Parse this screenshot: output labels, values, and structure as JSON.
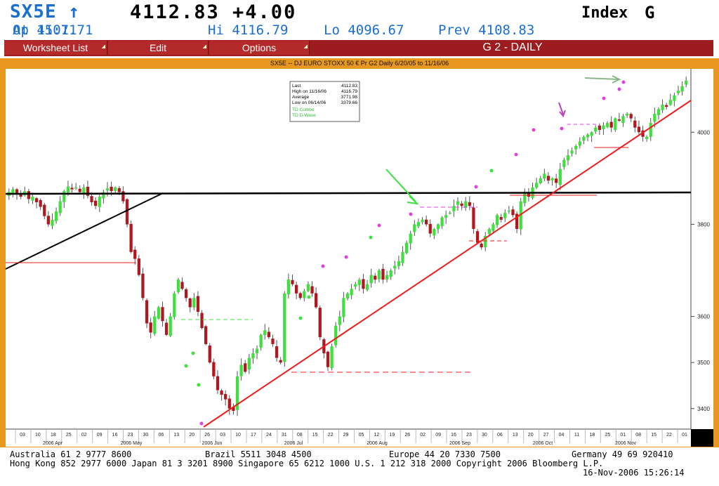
{
  "header": {
    "ticker": "SX5E",
    "arrow": "↑",
    "last_change": "4112.83 +4.00",
    "type": "Index",
    "type_code": "G",
    "at": "At 15:11",
    "open": "Op 4107.71",
    "high": "Hi 4116.79",
    "low": "Lo 4096.67",
    "prev": "Prev 4108.83"
  },
  "menu": {
    "worksheet_list": "Worksheet List",
    "edit": "Edit",
    "options": "Options",
    "page_title": "G 2 - DAILY"
  },
  "chart_data": {
    "type": "candlestick",
    "title": "SX5E -- DJ EURO STOXX 50 € Pr G2 Daily 6/20/05 to 11/16/06",
    "ylim": [
      3360,
      4130
    ],
    "yticks": [
      3400,
      3500,
      3600,
      3800,
      4000
    ],
    "ytick_labels": [
      "3400",
      "3500",
      "3600",
      "3800",
      "4000"
    ],
    "xtick_labels": [
      "03",
      "10",
      "18",
      "25",
      "02",
      "09",
      "16",
      "23",
      "30",
      "06",
      "13",
      "20",
      "26",
      "03",
      "10",
      "17",
      "24",
      "31",
      "08",
      "15",
      "22",
      "29",
      "05",
      "12",
      "19",
      "26",
      "02",
      "09",
      "16",
      "23",
      "30",
      "06",
      "13",
      "20",
      "27",
      "04",
      "11",
      "18",
      "25",
      "01",
      "08",
      "15",
      "22",
      "01"
    ],
    "month_labels": [
      "2006 Apr",
      "2006 May",
      "2006 Jun",
      "2006 Jul",
      "2006 Aug",
      "2006 Sep",
      "2006 Oct",
      "2006 Nov"
    ],
    "legend_box": {
      "rows": [
        [
          "Last",
          "4112.83"
        ],
        [
          "High on 11/16/06",
          "4116.79"
        ],
        [
          "Average",
          "3771.98"
        ],
        [
          "Low on 06/14/06",
          "3379.66"
        ]
      ],
      "studies": [
        "TD Combo",
        "TD D-Wave"
      ]
    },
    "horizontal_lines": [
      {
        "level": 3884,
        "color": "#000000"
      }
    ],
    "trendlines": [
      {
        "from": [
          "Jun 13",
          3395
        ],
        "to": [
          "Nov 16",
          4090
        ],
        "color": "#ee1c1c"
      },
      {
        "from": [
          "Mar 27",
          3735
        ],
        "to": [
          "May 16",
          3885
        ],
        "color": "#000000"
      }
    ],
    "closes": [
      3870,
      3876,
      3866,
      3860,
      3872,
      3855,
      3860,
      3848,
      3838,
      3818,
      3800,
      3810,
      3828,
      3850,
      3872,
      3882,
      3876,
      3880,
      3870,
      3880,
      3862,
      3848,
      3840,
      3860,
      3870,
      3878,
      3872,
      3880,
      3870,
      3850,
      3800,
      3740,
      3725,
      3690,
      3640,
      3585,
      3565,
      3600,
      3620,
      3590,
      3560,
      3600,
      3650,
      3680,
      3660,
      3640,
      3620,
      3640,
      3610,
      3575,
      3540,
      3500,
      3470,
      3440,
      3430,
      3420,
      3400,
      3395,
      3470,
      3495,
      3480,
      3510,
      3520,
      3530,
      3560,
      3570,
      3555,
      3540,
      3510,
      3500,
      3650,
      3680,
      3670,
      3650,
      3640,
      3655,
      3670,
      3650,
      3620,
      3555,
      3520,
      3490,
      3535,
      3580,
      3600,
      3640,
      3650,
      3660,
      3670,
      3680,
      3660,
      3670,
      3690,
      3680,
      3700,
      3680,
      3690,
      3700,
      3710,
      3720,
      3740,
      3760,
      3780,
      3800,
      3805,
      3810,
      3800,
      3780,
      3790,
      3800,
      3815,
      3820,
      3825,
      3840,
      3850,
      3840,
      3850,
      3840,
      3790,
      3760,
      3750,
      3775,
      3790,
      3800,
      3820,
      3810,
      3825,
      3830,
      3820,
      3790,
      3850,
      3870,
      3860,
      3880,
      3890,
      3900,
      3910,
      3895,
      3900,
      3890,
      3920,
      3940,
      3950,
      3960,
      3970,
      3980,
      3990,
      3995,
      4000,
      4010,
      4005,
      4015,
      4020,
      4010,
      4030,
      4025,
      4035,
      4040,
      4030,
      4010,
      4000,
      3990,
      3990,
      4020,
      4040,
      4050,
      4060,
      4055,
      4070,
      4080,
      4090,
      4100,
      4112
    ],
    "annotations": [
      "TD Combo",
      "TD D-Wave"
    ]
  },
  "footer": {
    "line1_a": "Australia 61 2 9777 8600",
    "line1_b": "Brazil 5511 3048 4500",
    "line1_c": "Europe 44 20 7330 7500",
    "line1_d": "Germany 49 69 920410",
    "line2": "Hong Kong 852 2977 6000 Japan 81 3 3201 8900 Singapore 65 6212 1000 U.S. 1 212 318 2000 Copyright 2006 Bloomberg L.P.",
    "line3": "16-Nov-2006 15:26:14"
  }
}
